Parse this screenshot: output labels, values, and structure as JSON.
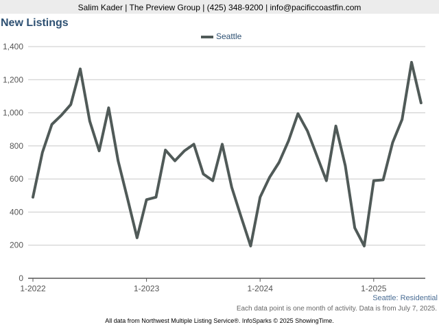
{
  "header": {
    "contact": "Salim Kader | The Preview Group | (425) 348-9200 | info@pacificcoastfin.com"
  },
  "chart_data": {
    "type": "line",
    "title": "New Listings",
    "series": [
      {
        "name": "Seattle",
        "color": "#505a58",
        "values": [
          490,
          760,
          930,
          985,
          1050,
          1265,
          950,
          770,
          1030,
          710,
          480,
          245,
          475,
          490,
          775,
          710,
          770,
          810,
          630,
          590,
          810,
          550,
          370,
          195,
          490,
          610,
          700,
          830,
          995,
          890,
          740,
          590,
          920,
          680,
          305,
          195,
          590,
          595,
          820,
          960,
          1305,
          1060
        ]
      }
    ],
    "x_start": "2022-01",
    "x_ticks": [
      "1-2022",
      "1-2023",
      "1-2024",
      "1-2025"
    ],
    "ylim": [
      0,
      1400
    ],
    "y_ticks": [
      "0",
      "200",
      "400",
      "600",
      "800",
      "1,000",
      "1,200",
      "1,400"
    ],
    "grid": true,
    "legend_position": "top-center",
    "subtitle": "Seattle: Residential",
    "note": "Each data point is one month of activity. Data is from July 7, 2025."
  },
  "footer": {
    "source": "All data from Northwest Multiple Listing Service®. InfoSparks © 2025 ShowingTime."
  }
}
